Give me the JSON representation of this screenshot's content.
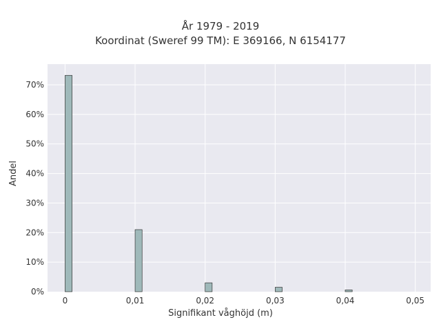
{
  "chart_data": {
    "type": "bar",
    "title_line1": "År 1979 - 2019",
    "title_line2": "Koordinat (Sweref 99 TM): E 369166, N 6154177",
    "xlabel": "Signifikant våghöjd (m)",
    "ylabel": "Andel",
    "x_ticks": [
      "0",
      "0,01",
      "0,02",
      "0,03",
      "0,04",
      "0,05"
    ],
    "x_tick_values": [
      0,
      0.01,
      0.02,
      0.03,
      0.04,
      0.05
    ],
    "y_ticks": [
      "0%",
      "10%",
      "20%",
      "30%",
      "40%",
      "50%",
      "60%",
      "70%"
    ],
    "y_tick_values": [
      0,
      10,
      20,
      30,
      40,
      50,
      60,
      70
    ],
    "xlim": [
      -0.0025,
      0.0522
    ],
    "ylim": [
      0,
      77
    ],
    "grid": true,
    "bar_color": "#9fb9ba",
    "bar_edge_color": "#333333",
    "background_color": "#e9e9f0",
    "categories": [
      0,
      0.01,
      0.02,
      0.03,
      0.04
    ],
    "values": [
      73.2,
      21.0,
      3.0,
      1.5,
      0.6
    ]
  }
}
